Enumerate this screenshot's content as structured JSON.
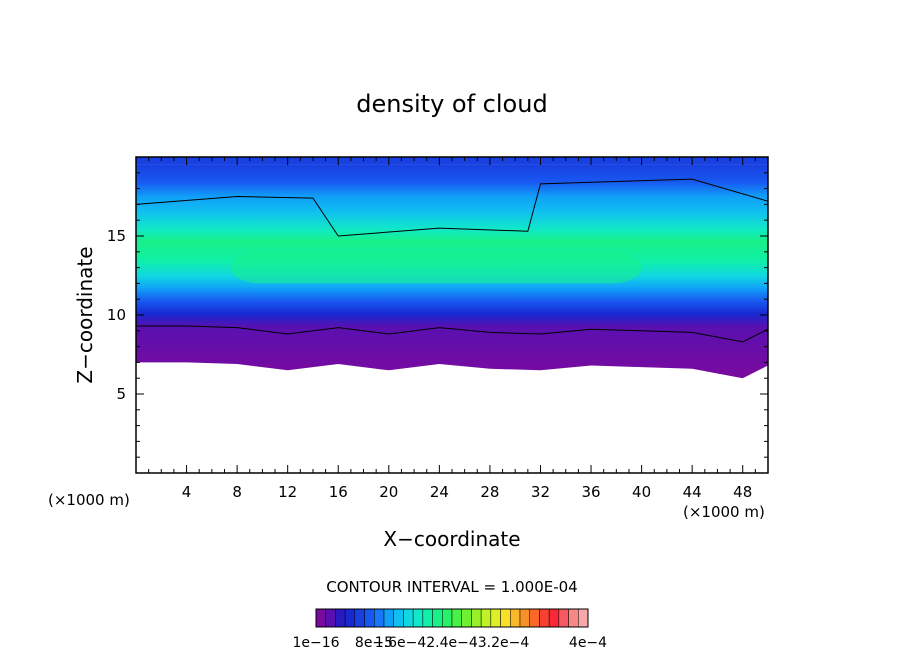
{
  "chart_data": {
    "type": "heatmap",
    "title": "density of cloud",
    "xlabel": "X−coordinate",
    "ylabel": "Z−coordinate",
    "x_unit_left": "(×1000 m)",
    "x_unit_right": "(×1000 m)",
    "xlim": [
      0,
      50
    ],
    "ylim": [
      0,
      20
    ],
    "x_ticks": [
      4,
      8,
      12,
      16,
      20,
      24,
      28,
      32,
      36,
      40,
      44,
      48
    ],
    "y_ticks": [
      5,
      10,
      15
    ],
    "contour_interval_text": "CONTOUR INTERVAL = 1.000E-04",
    "colorbar": {
      "colors": [
        "#7a0a9e",
        "#5a10b0",
        "#2a18c0",
        "#1828d0",
        "#1840e0",
        "#1858f0",
        "#1878f8",
        "#10a0f8",
        "#10c0f0",
        "#10d8e0",
        "#10e8c8",
        "#10f0a8",
        "#18f088",
        "#28f068",
        "#48f048",
        "#70f030",
        "#98f028",
        "#c0f028",
        "#e0f028",
        "#f8e028",
        "#f8b828",
        "#f89028",
        "#f86828",
        "#f84030",
        "#f82838",
        "#f85860",
        "#f88888",
        "#f8a8a8"
      ],
      "labels": [
        "1e−16",
        "8e−5",
        "1.6e−42.4e−43.2e−4",
        "4e−4"
      ]
    },
    "field": {
      "x": [
        0,
        4,
        8,
        12,
        16,
        20,
        24,
        28,
        32,
        36,
        40,
        44,
        48,
        50
      ],
      "cloud_base_z": [
        7.0,
        7.0,
        6.9,
        6.5,
        6.9,
        6.5,
        6.9,
        6.6,
        6.5,
        6.8,
        6.7,
        6.6,
        6.0,
        6.8
      ],
      "cloud_top_z": [
        19.5,
        19.5,
        19.5,
        19.5,
        19.5,
        19.5,
        19.5,
        19.5,
        19.5,
        19.5,
        19.5,
        19.5,
        19.5,
        19.5
      ],
      "max_density_band_z": [
        12,
        14
      ]
    }
  }
}
